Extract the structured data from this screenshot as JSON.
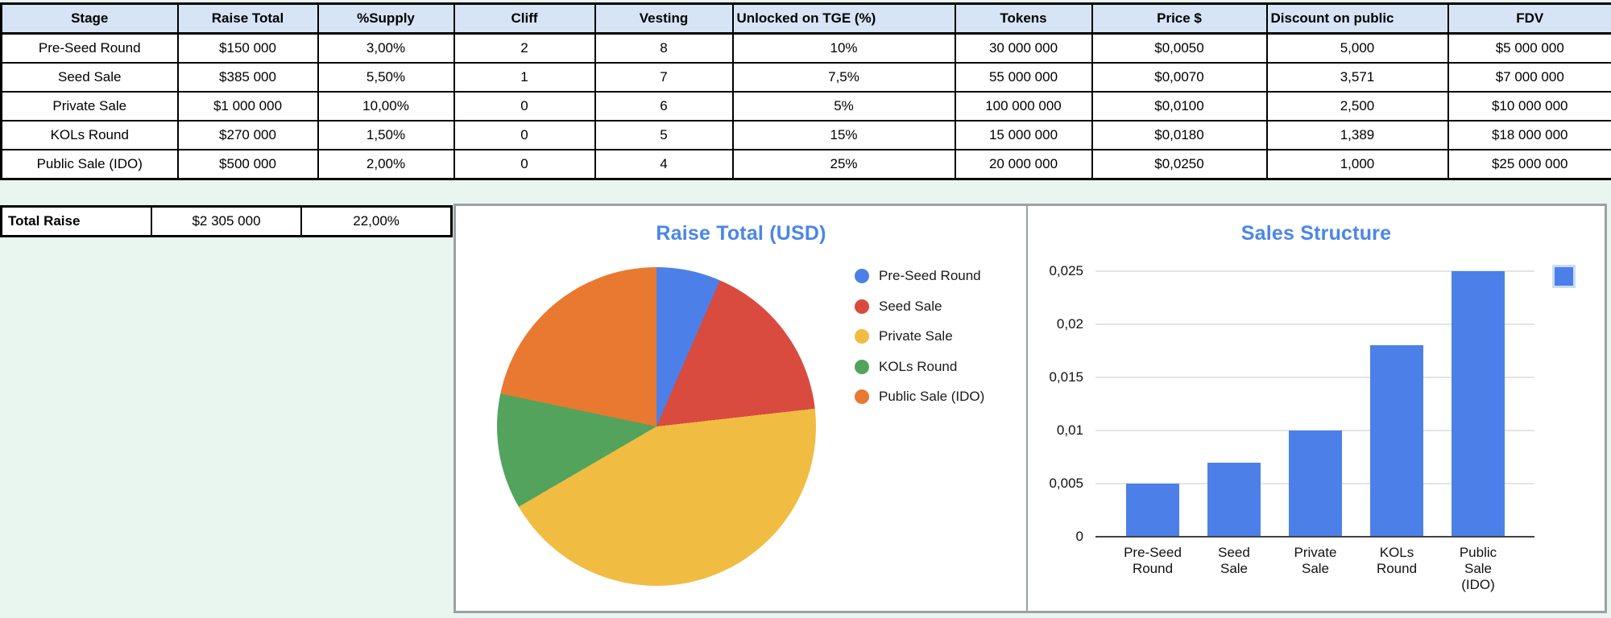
{
  "app": {
    "background_color": "#E9F6EF",
    "header_fill": "#D6E4F6",
    "chart_border_color": "#9AA0A6"
  },
  "stage_table": {
    "headers": [
      "Stage",
      "Raise Total",
      "%Supply",
      "Cliff",
      "Vesting",
      "Unlocked on TGE (%)",
      "Tokens",
      "Price $",
      "Discount on public",
      "FDV"
    ],
    "left_aligned_header_indices": [
      5,
      8
    ],
    "rows": [
      [
        "Pre-Seed Round",
        "$150 000",
        "3,00%",
        "2",
        "8",
        "10%",
        "30 000 000",
        "$0,0050",
        "5,000",
        "$5 000 000"
      ],
      [
        "Seed Sale",
        "$385 000",
        "5,50%",
        "1",
        "7",
        "7,5%",
        "55 000 000",
        "$0,0070",
        "3,571",
        "$7 000 000"
      ],
      [
        "Private Sale",
        "$1 000 000",
        "10,00%",
        "0",
        "6",
        "5%",
        "100 000 000",
        "$0,0100",
        "2,500",
        "$10 000 000"
      ],
      [
        "KOLs Round",
        "$270 000",
        "1,50%",
        "0",
        "5",
        "15%",
        "15 000 000",
        "$0,0180",
        "1,389",
        "$18 000 000"
      ],
      [
        "Public Sale (IDO)",
        "$500 000",
        "2,00%",
        "0",
        "4",
        "25%",
        "20 000 000",
        "$0,0250",
        "1,000",
        "$25 000 000"
      ]
    ]
  },
  "total_row": {
    "label": "Total Raise",
    "raise_total": "$2 305 000",
    "supply_pct": "22,00%"
  },
  "chart_data": [
    {
      "type": "pie",
      "title": "Raise Total (USD)",
      "title_color": "#4A86E8",
      "labels": [
        "Pre-Seed Round",
        "Seed Sale",
        "Private Sale",
        "KOLs Round",
        "Public Sale (IDO)"
      ],
      "values": [
        150000,
        385000,
        1000000,
        270000,
        500000
      ],
      "colors": [
        "#4C80E8",
        "#D94B3E",
        "#F1BC42",
        "#53A35D",
        "#E97930"
      ],
      "legend_position": "right",
      "start_angle_deg": 0,
      "direction": "clockwise"
    },
    {
      "type": "bar",
      "title": "Sales Structure",
      "title_color": "#4A86E8",
      "categories": [
        "Pre-Seed Round",
        "Seed Sale",
        "Private Sale",
        "KOLs Round",
        "Public Sale (IDO)"
      ],
      "category_lines": [
        [
          "Pre-Seed",
          "Round"
        ],
        [
          "Seed",
          "Sale"
        ],
        [
          "Private",
          "Sale"
        ],
        [
          "KOLs",
          "Round"
        ],
        [
          "Public",
          "Sale",
          "(IDO)"
        ]
      ],
      "values": [
        0.005,
        0.007,
        0.01,
        0.018,
        0.025
      ],
      "y_ticks": [
        0,
        0.005,
        0.01,
        0.015,
        0.02,
        0.025
      ],
      "y_tick_labels": [
        "0",
        "0,005",
        "0,01",
        "0,015",
        "0,02",
        "0,025"
      ],
      "ylim": [
        0,
        0.025
      ],
      "bar_color": "#4C80E8",
      "grid": true,
      "legend_swatch_color": "#4C80E8",
      "legend_swatch_label": ""
    }
  ]
}
